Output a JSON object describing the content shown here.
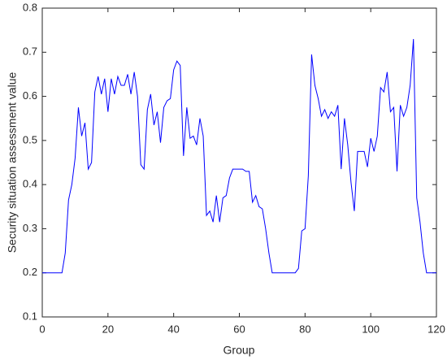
{
  "chart_data": {
    "type": "line",
    "x_label": "Group",
    "y_label": "Security situation assessment value",
    "x": [
      0,
      1,
      2,
      3,
      4,
      5,
      6,
      7,
      8,
      9,
      10,
      11,
      12,
      13,
      14,
      15,
      16,
      17,
      18,
      19,
      20,
      21,
      22,
      23,
      24,
      25,
      26,
      27,
      28,
      29,
      30,
      31,
      32,
      33,
      34,
      35,
      36,
      37,
      38,
      39,
      40,
      41,
      42,
      43,
      44,
      45,
      46,
      47,
      48,
      49,
      50,
      51,
      52,
      53,
      54,
      55,
      56,
      57,
      58,
      59,
      60,
      61,
      62,
      63,
      64,
      65,
      66,
      67,
      68,
      69,
      70,
      71,
      72,
      73,
      74,
      75,
      76,
      77,
      78,
      79,
      80,
      81,
      82,
      83,
      84,
      85,
      86,
      87,
      88,
      89,
      90,
      91,
      92,
      93,
      94,
      95,
      96,
      97,
      98,
      99,
      100,
      101,
      102,
      103,
      104,
      105,
      106,
      107,
      108,
      109,
      110,
      111,
      112,
      113,
      114,
      115,
      116,
      117,
      118,
      119,
      120
    ],
    "series": [
      {
        "color": "#0000ff",
        "values": [
          0.2,
          0.2,
          0.2,
          0.2,
          0.2,
          0.2,
          0.2,
          0.245,
          0.365,
          0.4,
          0.46,
          0.575,
          0.51,
          0.54,
          0.435,
          0.45,
          0.61,
          0.645,
          0.605,
          0.64,
          0.565,
          0.64,
          0.605,
          0.645,
          0.625,
          0.625,
          0.65,
          0.605,
          0.655,
          0.6,
          0.445,
          0.435,
          0.57,
          0.605,
          0.535,
          0.565,
          0.495,
          0.575,
          0.59,
          0.595,
          0.66,
          0.68,
          0.67,
          0.465,
          0.575,
          0.505,
          0.51,
          0.49,
          0.55,
          0.51,
          0.33,
          0.34,
          0.315,
          0.375,
          0.315,
          0.37,
          0.375,
          0.415,
          0.435,
          0.435,
          0.435,
          0.435,
          0.43,
          0.43,
          0.36,
          0.375,
          0.35,
          0.345,
          0.3,
          0.245,
          0.2,
          0.2,
          0.2,
          0.2,
          0.2,
          0.2,
          0.2,
          0.2,
          0.21,
          0.295,
          0.3,
          0.42,
          0.695,
          0.625,
          0.595,
          0.555,
          0.57,
          0.55,
          0.565,
          0.555,
          0.58,
          0.435,
          0.55,
          0.49,
          0.405,
          0.34,
          0.475,
          0.475,
          0.475,
          0.44,
          0.505,
          0.475,
          0.51,
          0.62,
          0.61,
          0.655,
          0.565,
          0.575,
          0.43,
          0.58,
          0.555,
          0.575,
          0.625,
          0.73,
          0.37,
          0.315,
          0.245,
          0.2,
          0.2,
          0.2,
          0.2
        ]
      }
    ],
    "xlim": [
      0,
      120
    ],
    "xticks": [
      0,
      20,
      40,
      60,
      80,
      100,
      120
    ],
    "ylim": [
      0.1,
      0.8
    ],
    "yticks": [
      0.1,
      0.2,
      0.3,
      0.4,
      0.5,
      0.6,
      0.7,
      0.8
    ]
  }
}
